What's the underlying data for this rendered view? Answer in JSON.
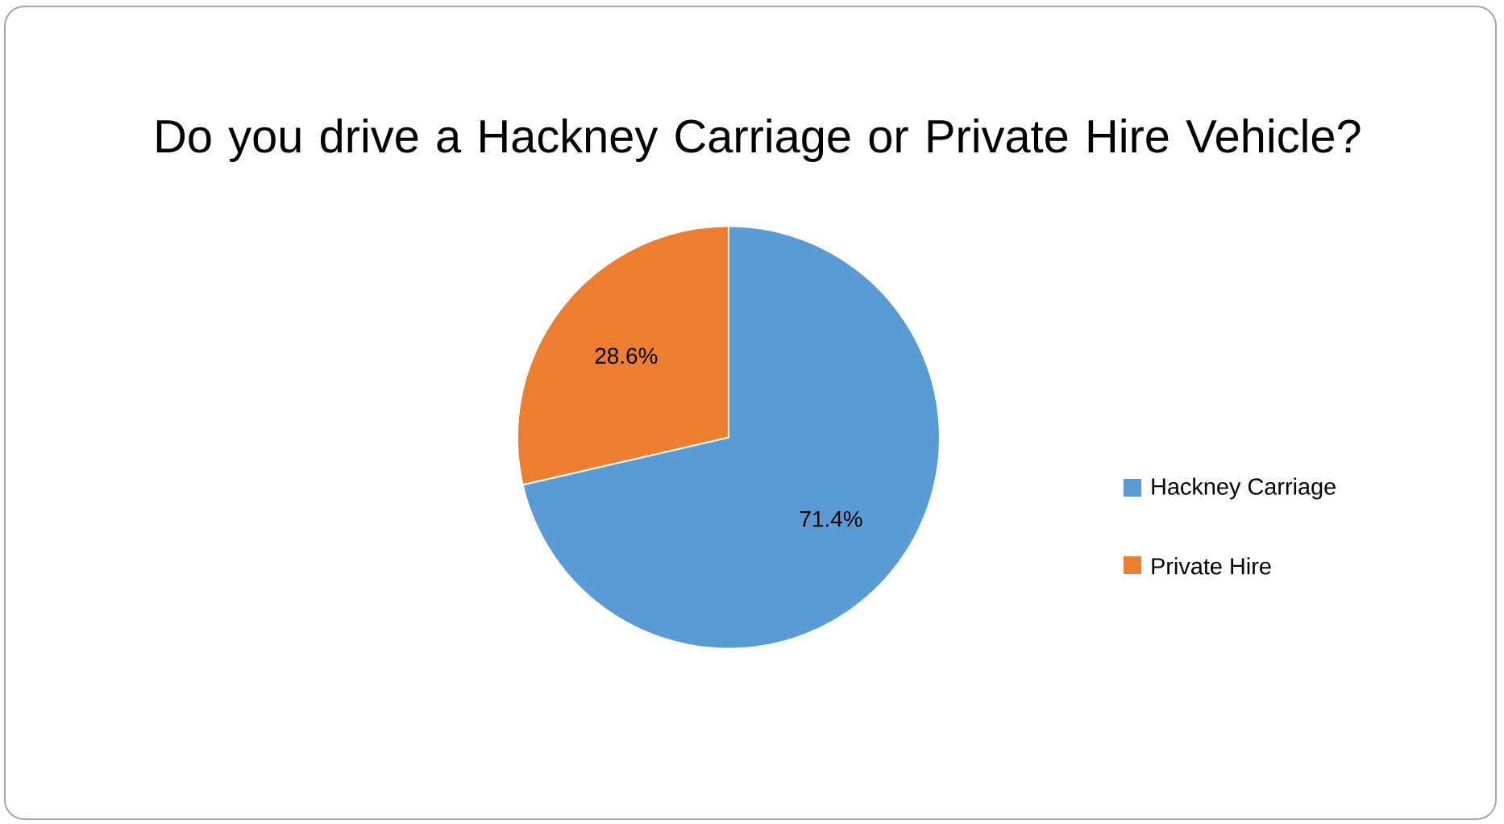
{
  "chart_data": {
    "type": "pie",
    "title": "Do you drive a Hackney Carriage or Private Hire Vehicle?",
    "categories": [
      "Hackney Carriage",
      "Private Hire"
    ],
    "values": [
      71.4,
      28.6
    ],
    "colors": [
      "#5b9bd5",
      "#ed7d31"
    ],
    "value_labels": [
      "71.4%",
      "28.6%"
    ],
    "legend": "right"
  }
}
